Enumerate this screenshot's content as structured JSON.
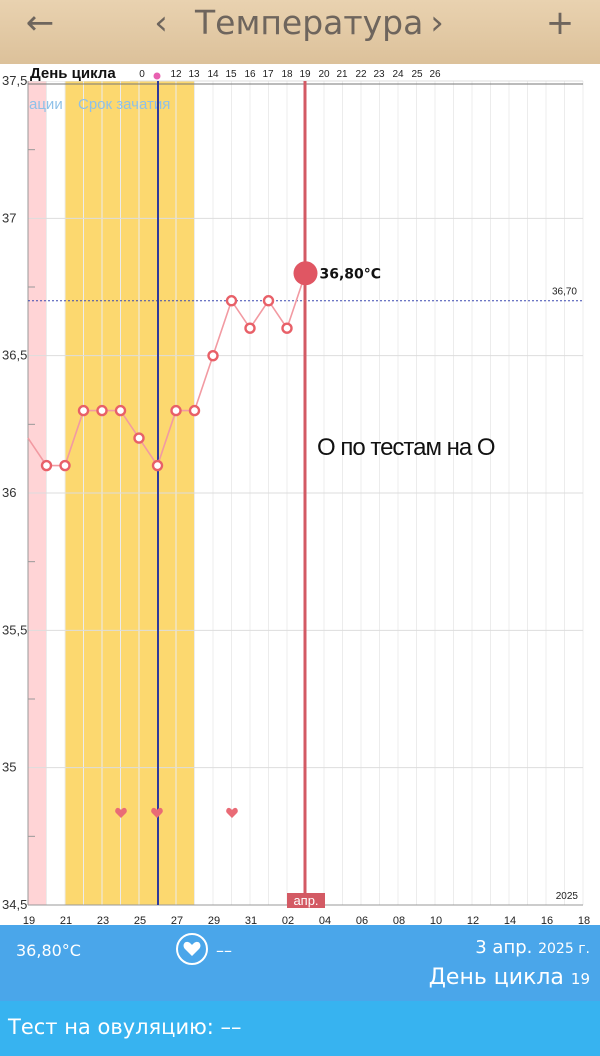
{
  "header": {
    "back_icon": "←",
    "prev_icon": "‹",
    "title": "Температура",
    "next_icon": "›",
    "add_icon": "+"
  },
  "chart_data": {
    "type": "line",
    "ylim": [
      34.5,
      37.5
    ],
    "y_ticks": [
      "34,5",
      "35",
      "35,5",
      "36",
      "36,5",
      "37",
      "37,5"
    ],
    "x_day_labels": [
      "19",
      "21",
      "23",
      "25",
      "27",
      "29",
      "31",
      "02",
      "04",
      "06",
      "08",
      "10",
      "12",
      "14",
      "16",
      "18"
    ],
    "cycle_label": "День цикла",
    "cycle_days": [
      "0",
      "12",
      "13",
      "14",
      "15",
      "16",
      "17",
      "18",
      "19",
      "20",
      "21",
      "22",
      "23",
      "24",
      "25",
      "26"
    ],
    "band_labels": [
      "ации",
      "Срок зачатия"
    ],
    "temps": [
      36.2,
      36.1,
      36.1,
      36.3,
      36.3,
      36.3,
      36.2,
      36.1,
      36.3,
      36.3,
      36.5,
      36.7,
      36.6,
      36.7,
      36.6,
      36.8
    ],
    "current_value_label": "36,80°C",
    "coverline_label": "36,70",
    "coverline_value": 36.7,
    "annotation": "О по тестам на О",
    "marker_label": "апр.",
    "year_label": "2025",
    "colors": {
      "fertile_band": "#fcd86f",
      "period_band": "#ffd4d6",
      "ovulation_line": "#2e3a9c",
      "today_line": "#d35a64",
      "series": "#f29aa2",
      "heart": "#e96b76"
    }
  },
  "bottom": {
    "temp": "36,80°C",
    "heart_icon": "heart-icon",
    "dash": "––",
    "date": "3 апр.",
    "year": "2025 г.",
    "cycle_label": "День цикла",
    "cycle_day": "19",
    "ovulation_test": "Тест на овуляцию: ––"
  }
}
